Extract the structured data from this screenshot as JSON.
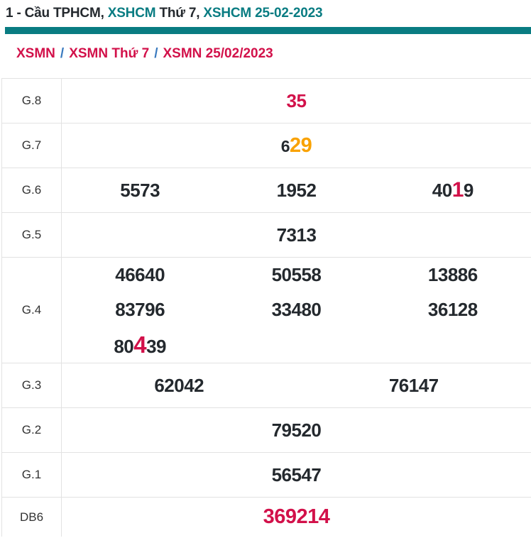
{
  "page": {
    "title_segments": [
      {
        "text": "1 - Cầu TPHCM, ",
        "color": "dark",
        "link": false
      },
      {
        "text": "XSHCM",
        "color": "teal",
        "link": true
      },
      {
        "text": " Thứ 7, ",
        "color": "dark",
        "link": false
      },
      {
        "text": "XSHCM 25-02-2023",
        "color": "teal",
        "link": true
      }
    ]
  },
  "breadcrumb": {
    "items": [
      "XSMN",
      "XSMN Thứ 7",
      "XSMN 25/02/2023"
    ],
    "separator": "/"
  },
  "table": {
    "rows": [
      {
        "label": "G.8",
        "cols": 1,
        "lines": [
          [
            [
              {
                "text": "35",
                "style": "red"
              }
            ]
          ]
        ]
      },
      {
        "label": "G.7",
        "cols": 1,
        "lines": [
          [
            [
              {
                "text": "6",
                "style": "black-sm"
              },
              {
                "text": "29",
                "style": "orange-lg"
              }
            ]
          ]
        ]
      },
      {
        "label": "G.6",
        "cols": 3,
        "lines": [
          [
            [
              {
                "text": "5573",
                "style": "black"
              }
            ],
            [
              {
                "text": "1952",
                "style": "black"
              }
            ],
            [
              {
                "text": "40",
                "style": "black"
              },
              {
                "text": "1",
                "style": "red-lg"
              },
              {
                "text": "9",
                "style": "black"
              }
            ]
          ]
        ]
      },
      {
        "label": "G.5",
        "cols": 1,
        "lines": [
          [
            [
              {
                "text": "7313",
                "style": "black"
              }
            ]
          ]
        ]
      },
      {
        "label": "G.4",
        "cols": 3,
        "lines": [
          [
            [
              {
                "text": "46640",
                "style": "black"
              }
            ],
            [
              {
                "text": "50558",
                "style": "black"
              }
            ],
            [
              {
                "text": "13886",
                "style": "black"
              }
            ]
          ],
          [
            [
              {
                "text": "83796",
                "style": "black"
              }
            ],
            [
              {
                "text": "33480",
                "style": "black"
              }
            ],
            [
              {
                "text": "36128",
                "style": "black"
              }
            ]
          ],
          [
            [
              {
                "text": "80",
                "style": "black"
              },
              {
                "text": "4",
                "style": "red-xl"
              },
              {
                "text": "39",
                "style": "black"
              }
            ],
            [],
            []
          ]
        ]
      },
      {
        "label": "G.3",
        "cols": 2,
        "lines": [
          [
            [
              {
                "text": "62042",
                "style": "black"
              }
            ],
            [
              {
                "text": "76147",
                "style": "black"
              }
            ]
          ]
        ]
      },
      {
        "label": "G.2",
        "cols": 1,
        "lines": [
          [
            [
              {
                "text": "79520",
                "style": "black"
              }
            ]
          ]
        ]
      },
      {
        "label": "G.1",
        "cols": 1,
        "lines": [
          [
            [
              {
                "text": "56547",
                "style": "black"
              }
            ]
          ]
        ]
      },
      {
        "label": "DB6",
        "cols": 1,
        "last": true,
        "lines": [
          [
            [
              {
                "text": "369214",
                "style": "red-db"
              }
            ]
          ]
        ]
      }
    ]
  },
  "colors": {
    "teal": "#097c82",
    "red": "#d2114a",
    "orange": "#f9a202",
    "dark": "#24292e",
    "label": "#333333",
    "border": "#e2e2e2",
    "slash": "#3a7abf",
    "page-bg": "#ffffff"
  }
}
